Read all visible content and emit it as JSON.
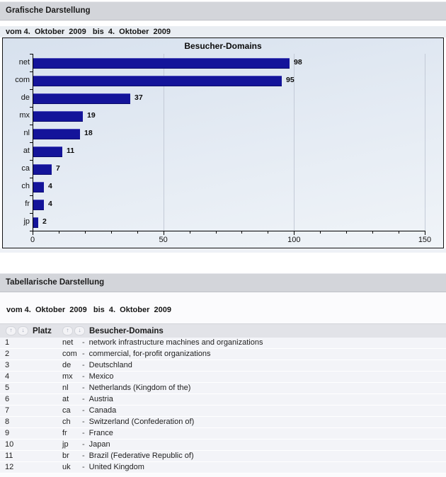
{
  "graphic_section": {
    "title": "Grafische Darstellung",
    "date_range": "vom 4.  Oktober  2009   bis  4.  Oktober  2009"
  },
  "chart_data": {
    "type": "bar",
    "orientation": "horizontal",
    "title": "Besucher-Domains",
    "categories": [
      "net",
      "com",
      "de",
      "mx",
      "nl",
      "at",
      "ca",
      "ch",
      "fr",
      "jp"
    ],
    "values": [
      98,
      95,
      37,
      19,
      18,
      11,
      7,
      4,
      4,
      2
    ],
    "xlabel": "",
    "ylabel": "",
    "xlim": [
      0,
      150
    ],
    "x_ticks": [
      0,
      50,
      100,
      150
    ],
    "minor_tick_step": 10,
    "grid": true,
    "legend": false,
    "value_labels": true
  },
  "table_section": {
    "title": "Tabellarische Darstellung",
    "date_range": "vom 4.  Oktober  2009   bis  4.  Oktober  2009",
    "columns": [
      {
        "label": "Platz"
      },
      {
        "label": "Besucher-Domains"
      }
    ],
    "separator": "-",
    "rows": [
      {
        "rank": "1",
        "code": "net",
        "description": "network infrastructure machines and organizations"
      },
      {
        "rank": "2",
        "code": "com",
        "description": "commercial, for-profit organizations"
      },
      {
        "rank": "3",
        "code": "de",
        "description": "Deutschland"
      },
      {
        "rank": "4",
        "code": "mx",
        "description": "Mexico"
      },
      {
        "rank": "5",
        "code": "nl",
        "description": "Netherlands (Kingdom of the)"
      },
      {
        "rank": "6",
        "code": "at",
        "description": "Austria"
      },
      {
        "rank": "7",
        "code": "ca",
        "description": "Canada"
      },
      {
        "rank": "8",
        "code": "ch",
        "description": "Switzerland (Confederation of)"
      },
      {
        "rank": "9",
        "code": "fr",
        "description": "France"
      },
      {
        "rank": "10",
        "code": "jp",
        "description": "Japan"
      },
      {
        "rank": "11",
        "code": "br",
        "description": "Brazil (Federative Republic of)"
      },
      {
        "rank": "12",
        "code": "uk",
        "description": "United Kingdom"
      }
    ]
  },
  "icons": {
    "sort_ascending": "↑",
    "sort_descending": "↓"
  },
  "colors": {
    "bar": "#14149a",
    "grid": "#c3cad7",
    "section_header_bg": "#d3d5da",
    "chart_bg": "#dce5f0",
    "row_bg": "#f3f4f8"
  }
}
